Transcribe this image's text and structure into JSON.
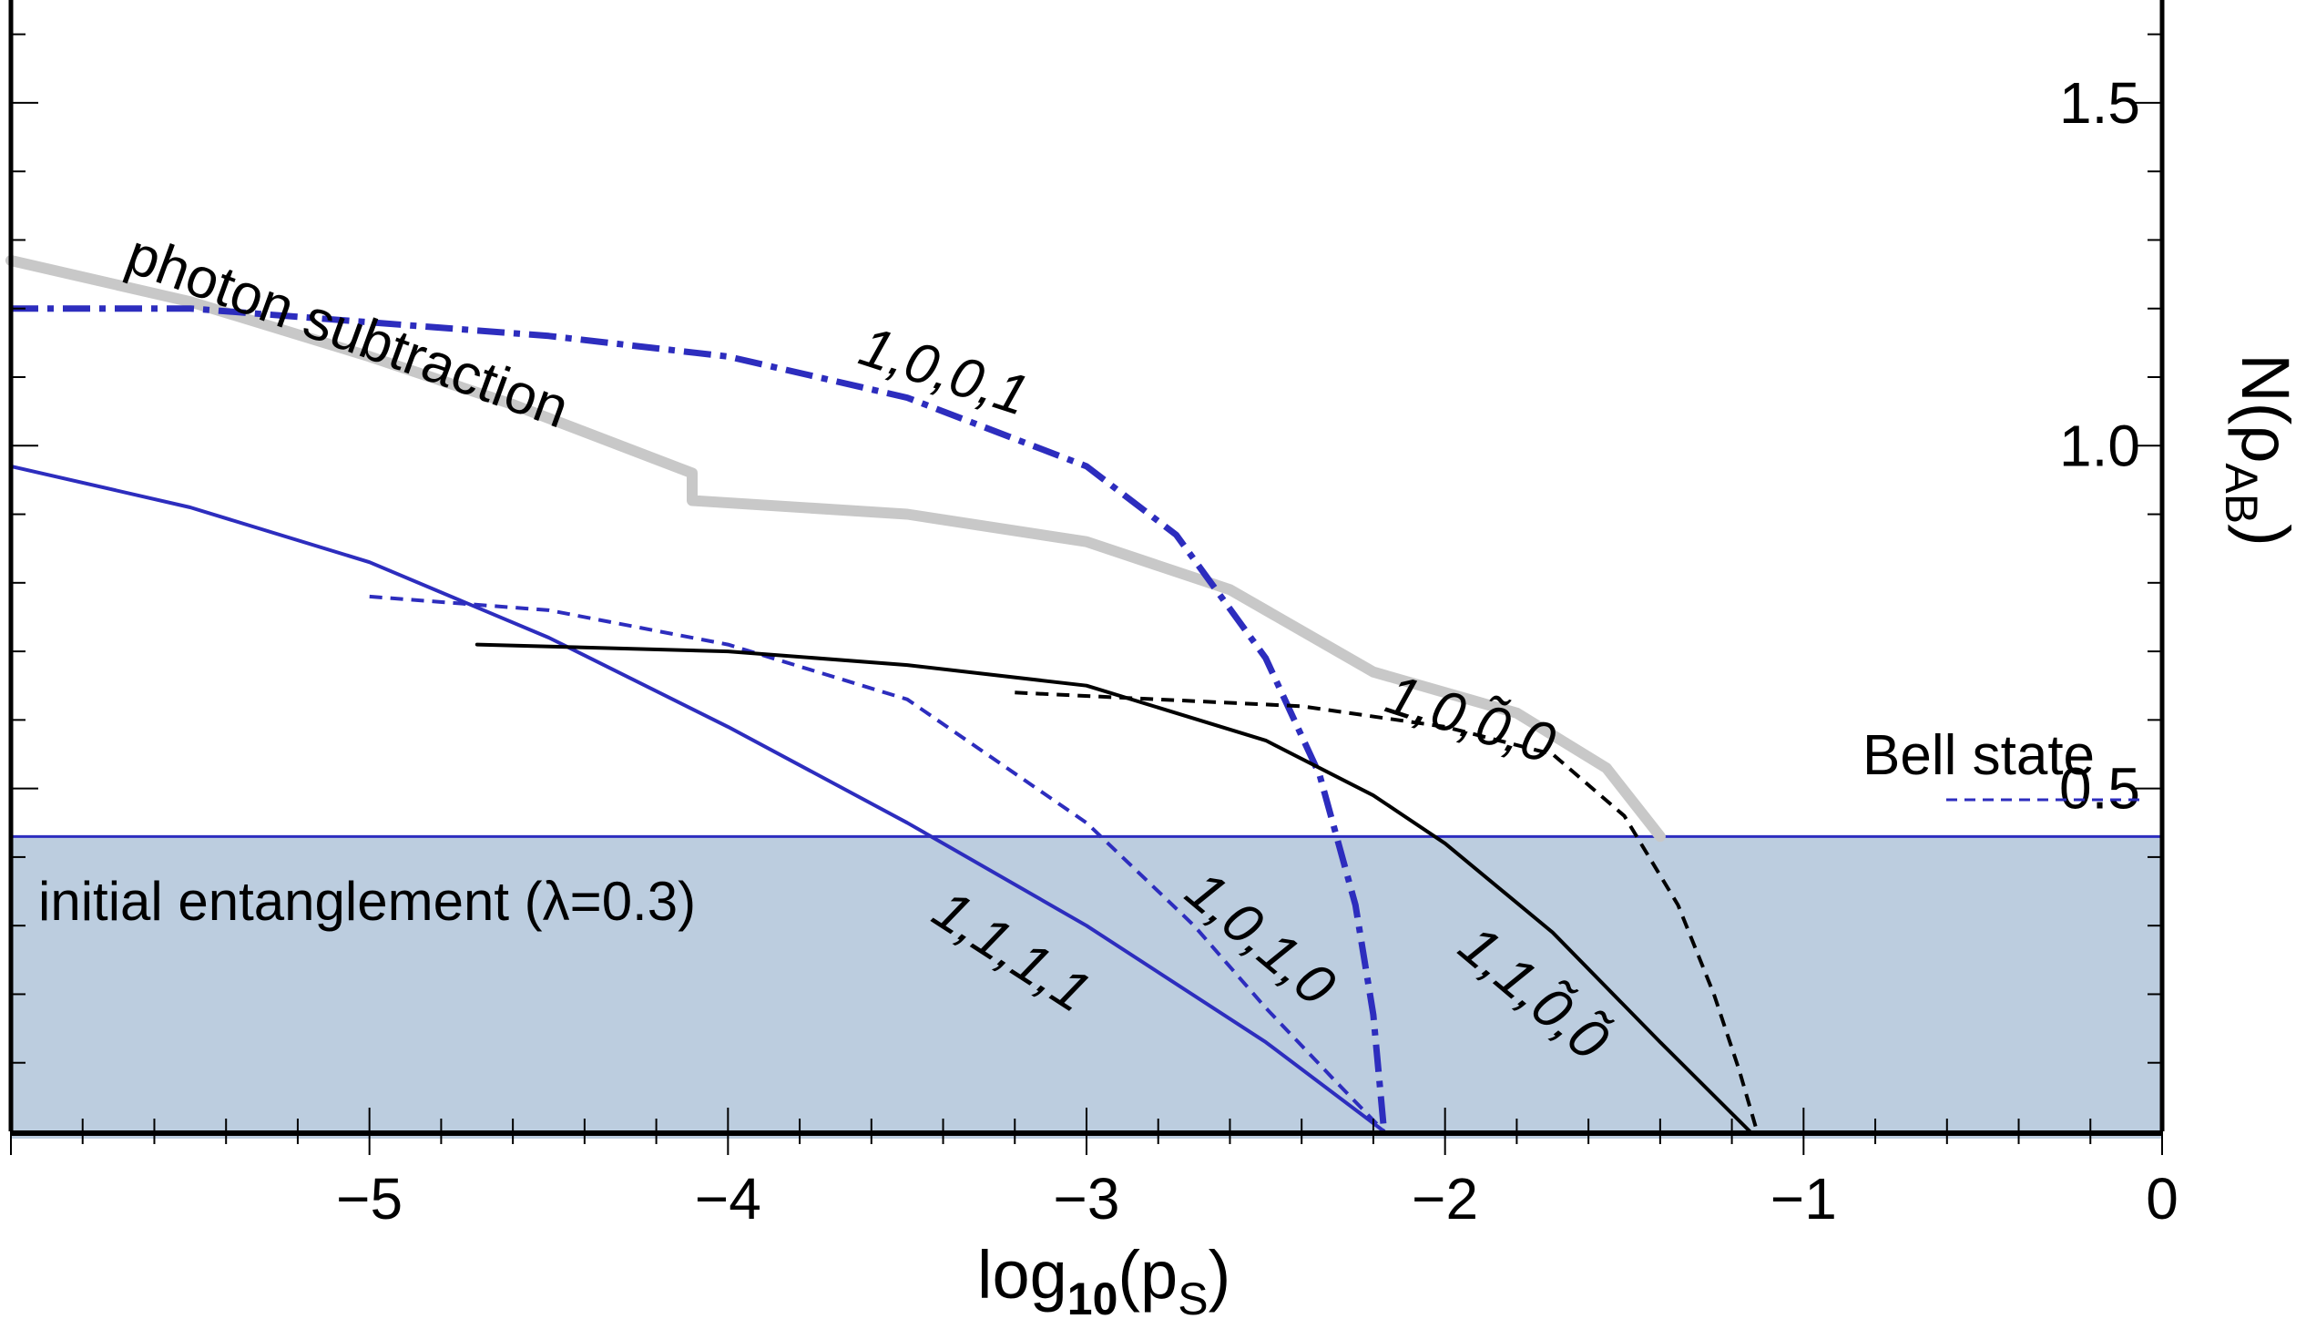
{
  "chart_data": {
    "type": "line",
    "xlabel": "log10(ps)",
    "ylabel": "N(ρAB)",
    "xlim": [
      -6,
      0
    ],
    "ylim": [
      0.0,
      1.65
    ],
    "x_ticks": [
      "−5",
      "−4",
      "−3",
      "−2",
      "−1",
      "0"
    ],
    "x_tick_values": [
      -5,
      -4,
      -3,
      -2,
      -1,
      0
    ],
    "y_ticks": [
      "0.5",
      "1.0",
      "1.5"
    ],
    "y_tick_values": [
      0.5,
      1.0,
      1.5
    ],
    "grid": false,
    "region": {
      "label": "initial entanglement (λ=0.3)",
      "y_max": 0.43,
      "color": "#bccddf"
    },
    "series": [
      {
        "name": "photon subtraction",
        "color": "#c8c8c8",
        "dash": "solid",
        "width": 12,
        "x": [
          -6.0,
          -5.5,
          -5.0,
          -4.6,
          -4.1,
          -4.1,
          -3.5,
          -3.0,
          -2.6,
          -2.2,
          -1.8,
          -1.55,
          -1.4
        ],
        "y": [
          1.27,
          1.21,
          1.13,
          1.06,
          0.96,
          0.92,
          0.9,
          0.86,
          0.79,
          0.67,
          0.61,
          0.53,
          0.43
        ]
      },
      {
        "name": "1,0,0,1",
        "color": "#2d2dbe",
        "dash": "dashdot",
        "width": 7,
        "x": [
          -6.0,
          -5.5,
          -5.0,
          -4.5,
          -4.0,
          -3.5,
          -3.0,
          -2.75,
          -2.5,
          -2.35,
          -2.25,
          -2.2,
          -2.17
        ],
        "y": [
          1.2,
          1.2,
          1.18,
          1.16,
          1.13,
          1.07,
          0.97,
          0.87,
          0.69,
          0.52,
          0.33,
          0.17,
          0.0
        ]
      },
      {
        "name": "1,1,1,1",
        "color": "#2d2dbe",
        "dash": "solid",
        "width": 4,
        "x": [
          -6.0,
          -5.5,
          -5.0,
          -4.5,
          -4.0,
          -3.5,
          -3.0,
          -2.5,
          -2.17
        ],
        "y": [
          0.97,
          0.91,
          0.83,
          0.72,
          0.59,
          0.45,
          0.3,
          0.13,
          0.0
        ]
      },
      {
        "name": "1,0,1,0",
        "color": "#2d2dbe",
        "dash": "dashed",
        "width": 4,
        "x": [
          -5.0,
          -4.5,
          -4.0,
          -3.5,
          -3.0,
          -2.7,
          -2.5,
          -2.3,
          -2.17
        ],
        "y": [
          0.78,
          0.76,
          0.71,
          0.63,
          0.45,
          0.3,
          0.18,
          0.07,
          0.0
        ]
      },
      {
        "name": "1,1,0̃,0̃",
        "color": "#000000",
        "dash": "solid",
        "width": 4,
        "x": [
          -4.7,
          -4.0,
          -3.5,
          -3.0,
          -2.5,
          -2.2,
          -2.0,
          -1.7,
          -1.4,
          -1.15
        ],
        "y": [
          0.71,
          0.7,
          0.68,
          0.65,
          0.57,
          0.49,
          0.42,
          0.29,
          0.13,
          0.0
        ]
      },
      {
        "name": "1,0,0̃,0",
        "color": "#000000",
        "dash": "dashed",
        "width": 4,
        "x": [
          -3.2,
          -2.8,
          -2.4,
          -2.0,
          -1.7,
          -1.5,
          -1.35,
          -1.25,
          -1.18,
          -1.13
        ],
        "y": [
          0.64,
          0.63,
          0.62,
          0.59,
          0.55,
          0.46,
          0.33,
          0.2,
          0.09,
          0.0
        ]
      }
    ],
    "reference_line": {
      "name": "Bell state",
      "color": "#2d2dbe",
      "dash": "dashed"
    },
    "annotations": [
      {
        "text": "photon subtraction",
        "series": "photon subtraction"
      },
      {
        "text": "1,0,0,1",
        "series": "1,0,0,1"
      },
      {
        "text": "1,0,0̃,0",
        "series": "1,0,0̃,0"
      },
      {
        "text": "1,0,1,0",
        "series": "1,0,1,0"
      },
      {
        "text": "1,1,1,1",
        "series": "1,1,1,1"
      },
      {
        "text": "1,1,0̃,0̃",
        "series": "1,1,0̃,0̃"
      }
    ]
  }
}
